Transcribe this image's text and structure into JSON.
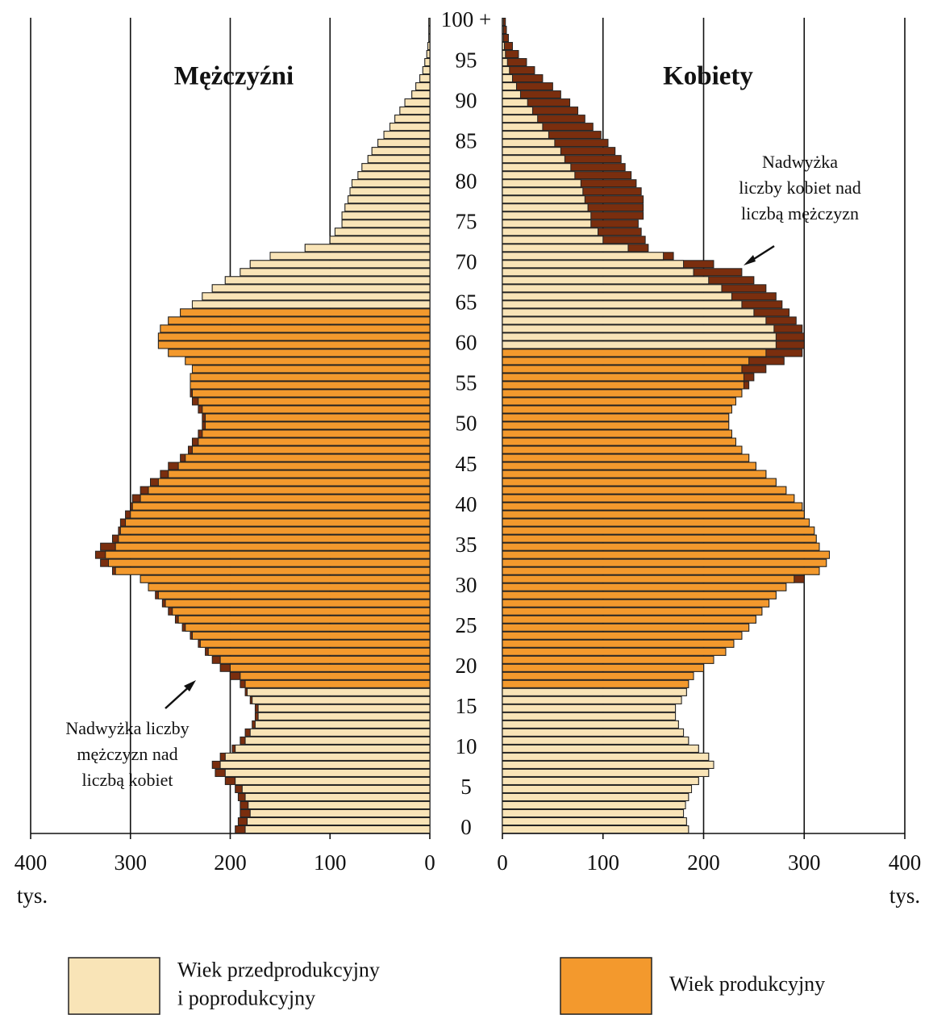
{
  "chart_data": {
    "type": "population_pyramid",
    "categories": [
      "0",
      null,
      null,
      null,
      null,
      "5",
      null,
      null,
      null,
      null,
      "10",
      null,
      null,
      null,
      null,
      "15",
      null,
      null,
      null,
      null,
      "20",
      null,
      null,
      null,
      null,
      "25",
      null,
      null,
      null,
      null,
      "30",
      null,
      null,
      null,
      null,
      "35",
      null,
      null,
      null,
      null,
      "40",
      null,
      null,
      null,
      null,
      "45",
      null,
      null,
      null,
      null,
      "50",
      null,
      null,
      null,
      null,
      "55",
      null,
      null,
      null,
      null,
      "60",
      null,
      null,
      null,
      null,
      "65",
      null,
      null,
      null,
      null,
      "70",
      null,
      null,
      null,
      null,
      "75",
      null,
      null,
      null,
      null,
      "80",
      null,
      null,
      null,
      null,
      "85",
      null,
      null,
      null,
      null,
      "90",
      null,
      null,
      null,
      null,
      "95",
      null,
      null,
      null,
      null,
      "100 +"
    ],
    "series": [
      {
        "name": "Mężczyźni",
        "side": "left",
        "productive_ages": [
          18,
          64
        ],
        "values": [
          195,
          192,
          190,
          190,
          192,
          195,
          205,
          215,
          218,
          210,
          198,
          190,
          185,
          178,
          175,
          175,
          180,
          185,
          190,
          200,
          210,
          218,
          225,
          232,
          240,
          248,
          255,
          262,
          268,
          275,
          282,
          290,
          318,
          330,
          335,
          330,
          318,
          312,
          310,
          305,
          300,
          298,
          290,
          280,
          270,
          262,
          250,
          242,
          238,
          232,
          228,
          228,
          232,
          238,
          240,
          240,
          240,
          238,
          245,
          262,
          272,
          272,
          270,
          262,
          250,
          238,
          228,
          218,
          205,
          190,
          180,
          160,
          125,
          100,
          95,
          88,
          88,
          85,
          82,
          80,
          78,
          72,
          68,
          62,
          58,
          52,
          46,
          40,
          35,
          30,
          25,
          18,
          14,
          10,
          7,
          5,
          3,
          2,
          1,
          1,
          1
        ]
      },
      {
        "name": "Kobiety",
        "side": "right",
        "productive_ages": [
          18,
          59
        ],
        "values": [
          185,
          183,
          180,
          182,
          185,
          188,
          195,
          205,
          210,
          205,
          195,
          185,
          180,
          175,
          172,
          172,
          178,
          183,
          185,
          190,
          200,
          210,
          222,
          230,
          238,
          245,
          252,
          258,
          265,
          272,
          282,
          300,
          315,
          322,
          325,
          315,
          312,
          310,
          305,
          300,
          298,
          290,
          282,
          272,
          262,
          252,
          245,
          238,
          232,
          228,
          225,
          225,
          228,
          232,
          238,
          245,
          250,
          262,
          280,
          298,
          300,
          300,
          298,
          292,
          285,
          278,
          272,
          262,
          250,
          238,
          210,
          170,
          145,
          142,
          138,
          135,
          140,
          140,
          140,
          138,
          133,
          128,
          122,
          118,
          112,
          105,
          98,
          90,
          82,
          75,
          67,
          58,
          50,
          40,
          32,
          24,
          16,
          10,
          6,
          4,
          3
        ]
      }
    ],
    "legend": [
      {
        "label_lines": [
          "Wiek przedprodukcyjny",
          "i poprodukcyjny"
        ],
        "color": "#f9e4b7"
      },
      {
        "label_lines": [
          "Wiek produkcyjny"
        ],
        "color": "#f3992d"
      }
    ],
    "surplus_color": "#7a2e0e",
    "xlim": [
      0,
      400
    ],
    "left_xticks": [
      400,
      300,
      200,
      100,
      0
    ],
    "right_xticks": [
      0,
      100,
      200,
      300,
      400
    ],
    "unit_label": "tys.",
    "annotations": [
      {
        "lines": [
          "Nadwyżka",
          "liczby kobiet nad",
          "liczbą mężczyzn"
        ]
      },
      {
        "lines": [
          "Nadwyżka liczby",
          "mężczyzn nad",
          "liczbą kobiet"
        ]
      }
    ]
  }
}
